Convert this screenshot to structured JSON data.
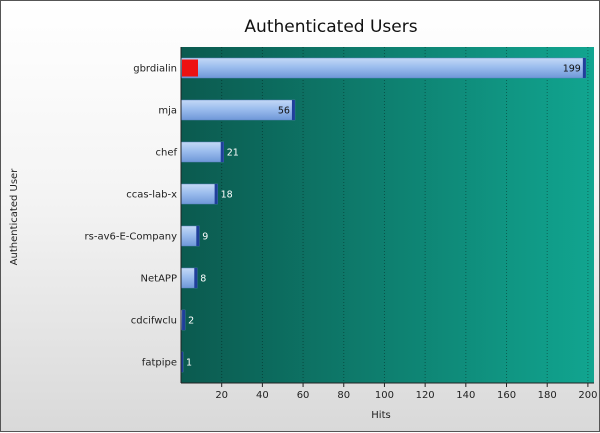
{
  "chart_data": {
    "type": "bar",
    "orientation": "horizontal",
    "title": "Authenticated Users",
    "xlabel": "Hits",
    "ylabel": "Authenticated User",
    "categories": [
      "gbrdialin",
      "mja",
      "chef",
      "ccas-lab-x",
      "rs-av6-E-Company",
      "NetAPP",
      "cdcifwclu",
      "fatpipe"
    ],
    "values": [
      199,
      56,
      21,
      18,
      9,
      8,
      2,
      1
    ],
    "xlim": [
      0,
      203
    ],
    "xticks": [
      20,
      40,
      60,
      80,
      100,
      120,
      140,
      160,
      180,
      200
    ],
    "grid": true,
    "colors": {
      "bar": "#8fb4e8",
      "bar_cap": "#1f3f9a",
      "highlight": "#ee1111",
      "plot_bg_start": "#0b5a4f",
      "plot_bg_end": "#11a590",
      "label_on_dark": "#ffffff",
      "label_on_bar": "#111111"
    }
  }
}
